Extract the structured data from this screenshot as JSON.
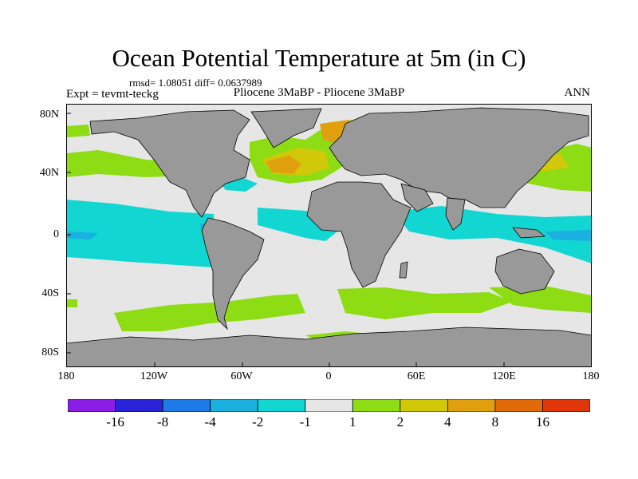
{
  "title": "Ocean Potential Temperature at 5m (in C)",
  "stats": "rmsd= 1.08051 diff= 0.0637989",
  "expt": "Expt = tevmt-teckg",
  "experiment_names": "Pliocene   3MaBP - Pliocene   3MaBP",
  "season": "ANN",
  "map": {
    "lat_labels": [
      "80N",
      "40N",
      "0",
      "40S",
      "80S"
    ],
    "lon_labels": [
      "180",
      "120W",
      "60W",
      "0",
      "60E",
      "120E",
      "180"
    ]
  },
  "colorbar": {
    "labels": [
      "-16",
      "-8",
      "-4",
      "-2",
      "-1",
      "1",
      "2",
      "4",
      "8",
      "16"
    ],
    "colors": [
      "#8a1ee6",
      "#2a24d8",
      "#1e7ae8",
      "#1ab0e0",
      "#12d6d2",
      "#e6e6e6",
      "#8edc14",
      "#d2c80a",
      "#e0a00e",
      "#e06a08",
      "#e0360a"
    ]
  },
  "legend_colors": {
    "land": "#999999",
    "neutral": "#e6e6e6",
    "cool_minus2": "#12d6d2",
    "cool_minus4": "#1ab0e0",
    "warm_plus2": "#8edc14",
    "warm_plus4": "#d2c80a",
    "warm_plus8": "#e0a00e"
  }
}
